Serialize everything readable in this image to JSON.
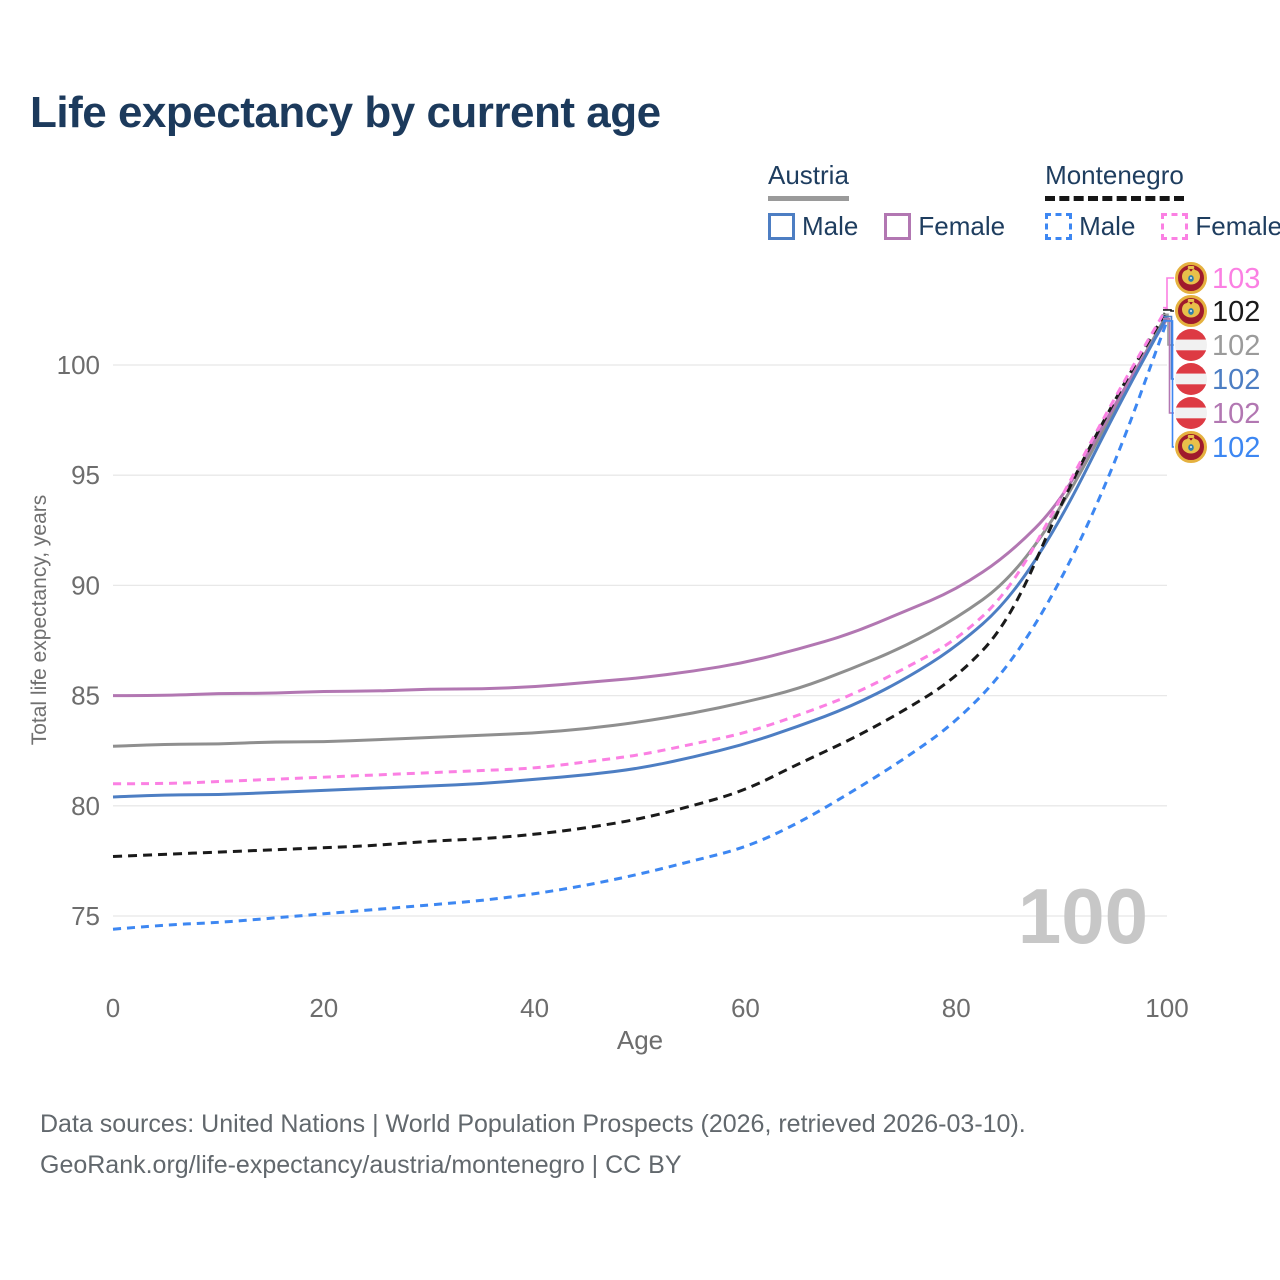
{
  "page": {
    "title": "Life expectancy by current age"
  },
  "legend": {
    "groups": [
      {
        "country": "Austria",
        "line_style": "solid",
        "underline_color": "#9a9a9a",
        "items": [
          {
            "label": "Male",
            "color": "#4d7ec3",
            "dashed": false
          },
          {
            "label": "Female",
            "color": "#b277b2",
            "dashed": false
          }
        ]
      },
      {
        "country": "Montenegro",
        "line_style": "dashed",
        "underline_color": "#161616",
        "items": [
          {
            "label": "Male",
            "color": "#3d87f2",
            "dashed": true
          },
          {
            "label": "Female",
            "color": "#fb80e3",
            "dashed": true
          }
        ]
      }
    ]
  },
  "chart_data": {
    "type": "line",
    "title": "Life expectancy by current age",
    "xlabel": "Age",
    "ylabel": "Total life expectancy, years",
    "x_ticks": [
      0,
      20,
      40,
      60,
      80,
      100
    ],
    "y_ticks": [
      75,
      80,
      85,
      90,
      95,
      100
    ],
    "xlim": [
      0,
      100
    ],
    "ylim": [
      73.5,
      103.5
    ],
    "grid": "horizontal",
    "legend_position": "top-right",
    "x": [
      0,
      5,
      10,
      15,
      20,
      25,
      30,
      35,
      40,
      45,
      50,
      55,
      60,
      65,
      70,
      75,
      80,
      85,
      90,
      95,
      100
    ],
    "series": [
      {
        "name": "Austria",
        "country": "Austria",
        "sex": "Both",
        "color": "#8f8f8f",
        "dashed": false,
        "values": [
          82.7,
          82.8,
          82.8,
          82.9,
          82.9,
          83.0,
          83.1,
          83.2,
          83.3,
          83.5,
          83.8,
          84.2,
          84.7,
          85.3,
          86.2,
          87.2,
          88.5,
          90.2,
          93.5,
          98.0,
          102.3
        ]
      },
      {
        "name": "Austria Female",
        "country": "Austria",
        "sex": "Female",
        "color": "#b277b2",
        "dashed": false,
        "values": [
          85.0,
          85.0,
          85.1,
          85.1,
          85.2,
          85.2,
          85.3,
          85.3,
          85.4,
          85.6,
          85.8,
          86.1,
          86.5,
          87.1,
          87.8,
          88.8,
          89.8,
          91.4,
          93.8,
          98.2,
          102.1
        ]
      },
      {
        "name": "Austria Male",
        "country": "Austria",
        "sex": "Male",
        "color": "#4d7ec3",
        "dashed": false,
        "values": [
          80.4,
          80.5,
          80.5,
          80.6,
          80.7,
          80.8,
          80.9,
          81.0,
          81.2,
          81.4,
          81.7,
          82.2,
          82.8,
          83.6,
          84.5,
          85.7,
          87.2,
          89.3,
          93.0,
          97.8,
          102.2
        ]
      },
      {
        "name": "Montenegro",
        "country": "Montenegro",
        "sex": "Both",
        "color": "#1a1a1a",
        "dashed": true,
        "values": [
          77.7,
          77.8,
          77.9,
          78.0,
          78.1,
          78.2,
          78.4,
          78.5,
          78.7,
          79.0,
          79.4,
          80.0,
          80.7,
          81.9,
          83.0,
          84.3,
          85.8,
          88.3,
          93.8,
          98.4,
          102.5
        ]
      },
      {
        "name": "Montenegro Male",
        "country": "Montenegro",
        "sex": "Male",
        "color": "#3d87f2",
        "dashed": true,
        "values": [
          74.4,
          74.6,
          74.7,
          74.9,
          75.1,
          75.3,
          75.5,
          75.7,
          76.0,
          76.4,
          76.9,
          77.5,
          78.1,
          79.2,
          80.6,
          82.1,
          83.8,
          86.3,
          90.2,
          95.4,
          102.0
        ]
      },
      {
        "name": "Montenegro Female",
        "country": "Montenegro",
        "sex": "Female",
        "color": "#fb80e3",
        "dashed": true,
        "values": [
          81.0,
          81.0,
          81.1,
          81.2,
          81.3,
          81.4,
          81.5,
          81.6,
          81.7,
          82.0,
          82.3,
          82.8,
          83.3,
          84.1,
          85.0,
          86.2,
          87.5,
          89.7,
          94.0,
          98.5,
          102.6
        ]
      }
    ],
    "end_labels": [
      {
        "value": "103",
        "color": "#fb80e3",
        "flag": "montenegro",
        "series": "Montenegro Female"
      },
      {
        "value": "102",
        "color": "#1a1a1a",
        "flag": "montenegro",
        "series": "Montenegro"
      },
      {
        "value": "102",
        "color": "#9b9b9b",
        "flag": "austria",
        "series": "Austria"
      },
      {
        "value": "102",
        "color": "#4d7ec3",
        "flag": "austria",
        "series": "Austria Male"
      },
      {
        "value": "102",
        "color": "#b277b2",
        "flag": "austria",
        "series": "Austria Female"
      },
      {
        "value": "102",
        "color": "#3d87f2",
        "flag": "montenegro",
        "series": "Montenegro Male"
      }
    ]
  },
  "watermark": "100",
  "footer": {
    "line1": "Data sources: United Nations | World Population Prospects (2026, retrieved 2026-03-10).",
    "line2": "GeoRank.org/life-expectancy/austria/montenegro | CC BY"
  }
}
